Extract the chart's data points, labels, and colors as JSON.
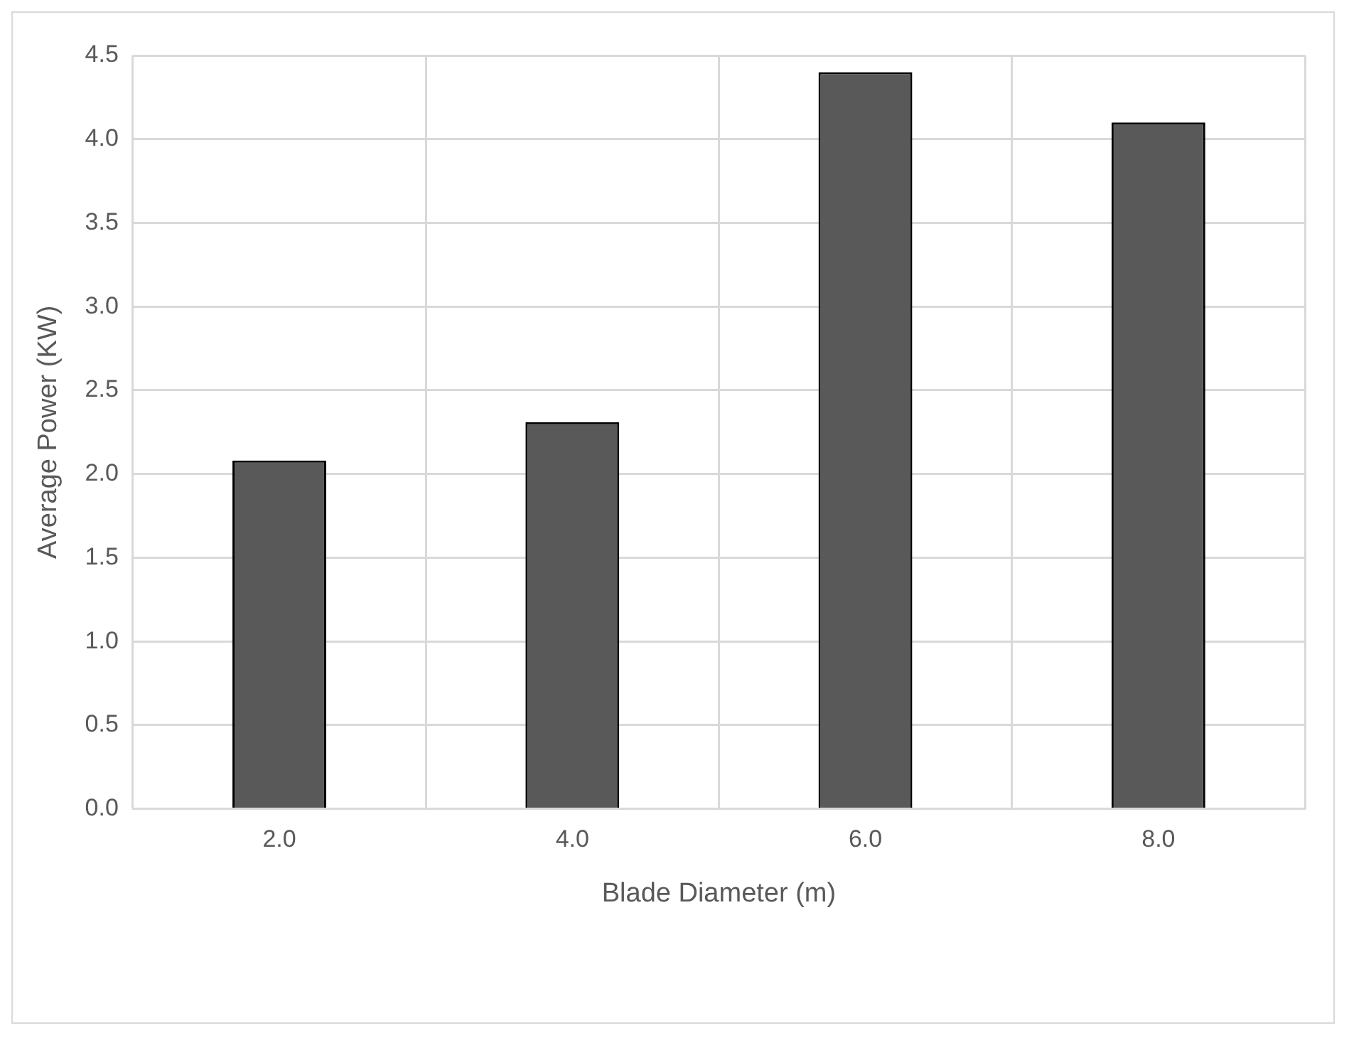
{
  "chart_data": {
    "type": "bar",
    "xlabel": "Blade Diameter (m)",
    "ylabel": "Average Power (KW)",
    "categories": [
      "2.0",
      "4.0",
      "6.0",
      "8.0"
    ],
    "values": [
      2.08,
      2.31,
      4.4,
      4.1
    ],
    "color": "#595959",
    "ylim": [
      0,
      4.5
    ],
    "yticks": [
      {
        "value": 0,
        "label": "0.0"
      },
      {
        "value": 0.5,
        "label": "0.5"
      },
      {
        "value": 1,
        "label": "1.0"
      },
      {
        "value": 1.5,
        "label": "1.5"
      },
      {
        "value": 2,
        "label": "2.0"
      },
      {
        "value": 2.5,
        "label": "2.5"
      },
      {
        "value": 3,
        "label": "3.0"
      },
      {
        "value": 3.5,
        "label": "3.5"
      },
      {
        "value": 4,
        "label": "4.0"
      },
      {
        "value": 4.5,
        "label": "4.5"
      }
    ],
    "grid": true,
    "legend": false
  }
}
